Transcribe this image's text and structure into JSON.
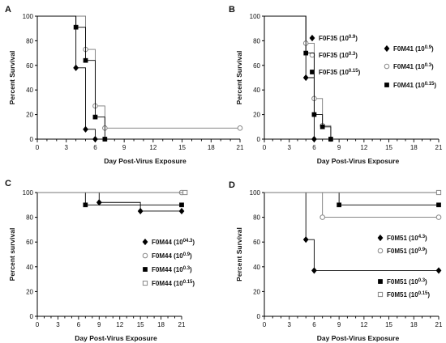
{
  "chart_data": [
    {
      "type": "line",
      "panel": "A",
      "title": "",
      "xlabel": "Day Post-Virus Exposure",
      "ylabel": "Percent Survival",
      "xlim": [
        0,
        21
      ],
      "ylim": [
        0,
        100
      ],
      "xticks": [
        0,
        1,
        2,
        3,
        4,
        5,
        6,
        7,
        8,
        9,
        10,
        11,
        12,
        13,
        14,
        15,
        16,
        17,
        18,
        19,
        20,
        21
      ],
      "xtick_labels": [
        "0",
        "3",
        "6",
        "9",
        "12",
        "15",
        "18",
        "21"
      ],
      "xtick_label_values": [
        0,
        3,
        6,
        9,
        12,
        15,
        18,
        21
      ],
      "yticks": [
        0,
        20,
        40,
        60,
        80,
        100
      ],
      "series": [
        {
          "name": "F0F35 (10",
          "exp": "0.9",
          "marker": "diamond",
          "color": "#000000",
          "x": [
            0,
            4,
            5,
            6
          ],
          "y": [
            100,
            58,
            8,
            0
          ]
        },
        {
          "name": "F0F35 (10",
          "exp": "0.3",
          "marker": "circle-open",
          "color": "#888888",
          "x": [
            0,
            5,
            6,
            7,
            21
          ],
          "y": [
            100,
            73,
            27,
            9,
            9
          ]
        },
        {
          "name": "F0F35 (10",
          "exp": "0.15",
          "marker": "square",
          "color": "#000000",
          "x": [
            0,
            4,
            5,
            6,
            7
          ],
          "y": [
            100,
            91,
            64,
            18,
            0
          ]
        }
      ],
      "legend": "right"
    },
    {
      "type": "line",
      "panel": "B",
      "title": "",
      "xlabel": "Day Post-Virus Exposure",
      "ylabel": "Percent Survival",
      "xlim": [
        0,
        21
      ],
      "ylim": [
        0,
        100
      ],
      "xticks": [
        0,
        1,
        2,
        3,
        4,
        5,
        6,
        7,
        8,
        9,
        10,
        11,
        12,
        13,
        14,
        15,
        16,
        17,
        18,
        19,
        20,
        21
      ],
      "xtick_labels": [
        "0",
        "3",
        "6",
        "9",
        "12",
        "15",
        "18",
        "21"
      ],
      "xtick_label_values": [
        0,
        3,
        6,
        9,
        12,
        15,
        18,
        21
      ],
      "yticks": [
        0,
        20,
        40,
        60,
        80,
        100
      ],
      "series": [
        {
          "name": "F0M41 (10",
          "exp": "0.9",
          "marker": "diamond",
          "color": "#000000",
          "x": [
            0,
            5,
            6
          ],
          "y": [
            100,
            50,
            0
          ]
        },
        {
          "name": "F0M41 (10",
          "exp": "0.3",
          "marker": "circle-open",
          "color": "#888888",
          "x": [
            0,
            5,
            6,
            7,
            8
          ],
          "y": [
            100,
            78,
            33,
            11,
            0
          ]
        },
        {
          "name": "F0M41 (10",
          "exp": "0.15",
          "marker": "square",
          "color": "#000000",
          "x": [
            0,
            5,
            6,
            7,
            8
          ],
          "y": [
            100,
            70,
            20,
            10,
            0
          ]
        }
      ],
      "legend": "right"
    },
    {
      "type": "line",
      "panel": "C",
      "title": "",
      "xlabel": "Day Post-Virus Exposure",
      "ylabel": "Percent survival",
      "xlim": [
        0,
        21
      ],
      "ylim": [
        0,
        100
      ],
      "xticks": [
        0,
        1,
        2,
        3,
        4,
        5,
        6,
        7,
        8,
        9,
        10,
        11,
        12,
        13,
        14,
        15,
        16,
        17,
        18,
        19,
        20,
        21
      ],
      "xtick_labels": [
        "0",
        "3",
        "6",
        "9",
        "12",
        "15",
        "18",
        "21"
      ],
      "xtick_label_values": [
        0,
        3,
        6,
        9,
        12,
        15,
        18,
        21
      ],
      "yticks": [
        0,
        20,
        40,
        60,
        80,
        100
      ],
      "series": [
        {
          "name": "F0M44 (10",
          "exp": "04.3",
          "marker": "diamond",
          "color": "#000000",
          "x": [
            0,
            9,
            15,
            21
          ],
          "y": [
            100,
            92,
            85,
            85
          ]
        },
        {
          "name": "F0M44 (10",
          "exp": "0.9",
          "marker": "circle-open",
          "color": "#888888",
          "x": [
            0,
            21
          ],
          "y": [
            100,
            100
          ]
        },
        {
          "name": "F0M44 (10",
          "exp": "0.3",
          "marker": "square",
          "color": "#000000",
          "x": [
            0,
            7,
            21
          ],
          "y": [
            100,
            90,
            90
          ]
        },
        {
          "name": "F0M44 (10",
          "exp": "0.15",
          "marker": "square-open",
          "color": "#888888",
          "x": [
            0,
            21.5
          ],
          "y": [
            100,
            100
          ]
        }
      ],
      "legend": "right"
    },
    {
      "type": "line",
      "panel": "D",
      "title": "",
      "xlabel": "Day Post-Virus Exposure",
      "ylabel": "Percent Survival",
      "xlim": [
        0,
        21
      ],
      "ylim": [
        0,
        100
      ],
      "xticks": [
        0,
        1,
        2,
        3,
        4,
        5,
        6,
        7,
        8,
        9,
        10,
        11,
        12,
        13,
        14,
        15,
        16,
        17,
        18,
        19,
        20,
        21
      ],
      "xtick_labels": [
        "0",
        "3",
        "6",
        "9",
        "12",
        "15",
        "18",
        "21"
      ],
      "xtick_label_values": [
        0,
        3,
        6,
        9,
        12,
        15,
        18,
        21
      ],
      "yticks": [
        0,
        20,
        40,
        60,
        80,
        100
      ],
      "series": [
        {
          "name": "F0M51 (10",
          "exp": "4.3",
          "marker": "diamond",
          "color": "#000000",
          "x": [
            0,
            5,
            6,
            21
          ],
          "y": [
            100,
            62,
            37,
            37
          ]
        },
        {
          "name": "F0M51 (10",
          "exp": "0.9",
          "marker": "circle-open",
          "color": "#888888",
          "x": [
            0,
            7,
            21
          ],
          "y": [
            100,
            80,
            80
          ]
        },
        {
          "name": "F0M51 (10",
          "exp": "0.3",
          "marker": "square",
          "color": "#000000",
          "x": [
            0,
            9,
            21
          ],
          "y": [
            100,
            90,
            90
          ]
        },
        {
          "name": "F0M51 (10",
          "exp": "0.15",
          "marker": "square-open",
          "color": "#888888",
          "x": [
            0,
            21
          ],
          "y": [
            100,
            100
          ]
        }
      ],
      "legend": "right"
    }
  ]
}
